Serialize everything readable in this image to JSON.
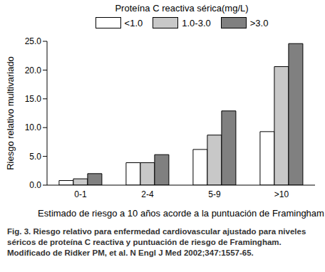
{
  "chart_data": {
    "type": "bar",
    "legend_title": "Proteína C reactiva sérica(mg/L)",
    "x_label": "Estimado de riesgo a 10 años acorde a la puntuación de Framingham",
    "y_label": "Riesgo relativo multivariado",
    "caption_label": "Fig. 3.",
    "caption": "Riesgo relativo para enfermedad cardiovascular ajustado para niveles séricos de proteína C reactiva y puntuación de riesgo de Framingham. Modificado de Ridker PM, et al. N Engl J Med 2002;347:1557-65.",
    "categories": [
      "0-1",
      "2-4",
      "5-9",
      ">10"
    ],
    "series": [
      {
        "name": "<1.0",
        "color": "#ffffff",
        "values": [
          0.8,
          3.9,
          6.2,
          9.3
        ]
      },
      {
        "name": "1.0-3.0",
        "color": "#c8c8c8",
        "values": [
          1.1,
          3.9,
          8.7,
          20.6
        ]
      },
      {
        "name": ">3.0",
        "color": "#808080",
        "values": [
          2.0,
          5.3,
          12.9,
          24.6
        ]
      }
    ],
    "ylim": [
      0,
      25
    ],
    "yticks": [
      {
        "value": 0,
        "label": "0.0"
      },
      {
        "value": 5,
        "label": "5.0"
      },
      {
        "value": 10,
        "label": "10.0"
      },
      {
        "value": 15,
        "label": "15.0"
      },
      {
        "value": 20,
        "label": "20.0"
      },
      {
        "value": 25,
        "label": "25.0"
      }
    ],
    "legend": "top",
    "grid": false
  }
}
